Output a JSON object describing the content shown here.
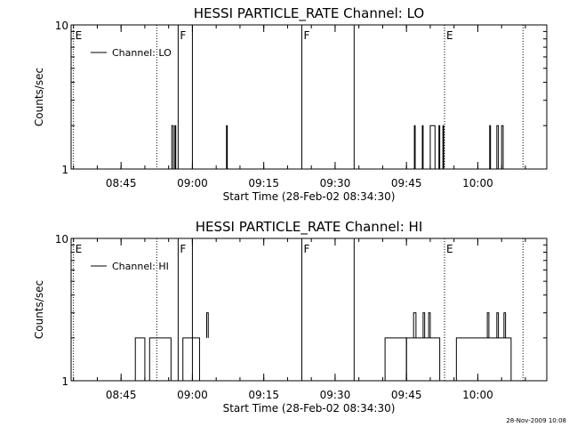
{
  "chart_data": [
    {
      "type": "line",
      "title": "HESSI PARTICLE_RATE Channel: LO",
      "xlabel": "Start Time (28-Feb-02 08:34:30)",
      "ylabel": "Counts/sec",
      "legend": "Channel: LO",
      "legend_position": "top-left",
      "y_scale": "log",
      "ylim": [
        1,
        10
      ],
      "y_ticks": [
        {
          "v": 1,
          "label": "1"
        },
        {
          "v": 10,
          "label": "10"
        }
      ],
      "xlim": [
        "08:34:30",
        "10:14:30"
      ],
      "x_ticks": [
        "08:45",
        "09:00",
        "09:15",
        "09:30",
        "09:45",
        "10:00"
      ],
      "markers": [
        {
          "time": "08:35:00",
          "label": "E",
          "style": "dotted"
        },
        {
          "time": "08:52:30",
          "label": "",
          "style": "dotted"
        },
        {
          "time": "08:57:00",
          "label": "F",
          "style": "solid"
        },
        {
          "time": "09:00:00",
          "label": "",
          "style": "solid"
        },
        {
          "time": "09:23:00",
          "label": "F",
          "style": "solid"
        },
        {
          "time": "09:34:00",
          "label": "",
          "style": "solid"
        },
        {
          "time": "09:53:00",
          "label": "E",
          "style": "dotted"
        },
        {
          "time": "10:09:30",
          "label": "",
          "style": "dotted"
        }
      ],
      "spikes": [
        {
          "start": "08:55:40",
          "end": "08:56:00",
          "value": 2
        },
        {
          "start": "08:56:20",
          "end": "08:56:30",
          "value": 2
        },
        {
          "start": "09:07:10",
          "end": "09:07:20",
          "value": 2
        },
        {
          "start": "09:46:40",
          "end": "09:46:50",
          "value": 2
        },
        {
          "start": "09:48:20",
          "end": "09:48:30",
          "value": 2
        },
        {
          "start": "09:50:00",
          "end": "09:51:00",
          "value": 2
        },
        {
          "start": "09:51:50",
          "end": "09:52:00",
          "value": 2
        },
        {
          "start": "09:52:40",
          "end": "09:52:50",
          "value": 2
        },
        {
          "start": "10:02:30",
          "end": "10:02:40",
          "value": 2
        },
        {
          "start": "10:04:00",
          "end": "10:04:20",
          "value": 2
        },
        {
          "start": "10:05:00",
          "end": "10:05:20",
          "value": 2
        }
      ]
    },
    {
      "type": "line",
      "title": "HESSI PARTICLE_RATE Channel: HI",
      "xlabel": "Start Time (28-Feb-02 08:34:30)",
      "ylabel": "Counts/sec",
      "legend": "Channel: HI",
      "legend_position": "top-left",
      "y_scale": "log",
      "ylim": [
        1,
        10
      ],
      "y_ticks": [
        {
          "v": 1,
          "label": "1"
        },
        {
          "v": 10,
          "label": "10"
        }
      ],
      "xlim": [
        "08:34:30",
        "10:14:30"
      ],
      "x_ticks": [
        "08:45",
        "09:00",
        "09:15",
        "09:30",
        "09:45",
        "10:00"
      ],
      "markers": [
        {
          "time": "08:35:00",
          "label": "E",
          "style": "dotted"
        },
        {
          "time": "08:52:30",
          "label": "",
          "style": "dotted"
        },
        {
          "time": "08:57:00",
          "label": "F",
          "style": "solid"
        },
        {
          "time": "09:00:00",
          "label": "",
          "style": "solid"
        },
        {
          "time": "09:23:00",
          "label": "F",
          "style": "solid"
        },
        {
          "time": "09:34:00",
          "label": "",
          "style": "solid"
        },
        {
          "time": "09:53:00",
          "label": "E",
          "style": "dotted"
        },
        {
          "time": "10:09:30",
          "label": "",
          "style": "dotted"
        }
      ],
      "base_value": 2,
      "baseline_segments": [
        {
          "start": "08:48:00",
          "end": "08:50:00",
          "value": 2
        },
        {
          "start": "08:51:00",
          "end": "08:55:30",
          "value": 2
        },
        {
          "start": "08:58:00",
          "end": "09:01:30",
          "value": 2
        },
        {
          "start": "09:40:30",
          "end": "09:45:00",
          "value": 2
        },
        {
          "start": "09:45:00",
          "end": "09:52:00",
          "value": 2
        },
        {
          "start": "09:55:30",
          "end": "10:07:00",
          "value": 2
        }
      ],
      "spikes": [
        {
          "start": "09:03:00",
          "end": "09:03:20",
          "value": 3
        },
        {
          "start": "09:46:30",
          "end": "09:47:00",
          "value": 3
        },
        {
          "start": "09:48:30",
          "end": "09:48:50",
          "value": 3
        },
        {
          "start": "09:49:40",
          "end": "09:50:00",
          "value": 3
        },
        {
          "start": "10:02:00",
          "end": "10:02:20",
          "value": 3
        },
        {
          "start": "10:04:00",
          "end": "10:04:20",
          "value": 3
        },
        {
          "start": "10:05:30",
          "end": "10:05:50",
          "value": 3
        }
      ]
    }
  ],
  "footer": {
    "timestamp": "28-Nov-2009 10:08"
  }
}
